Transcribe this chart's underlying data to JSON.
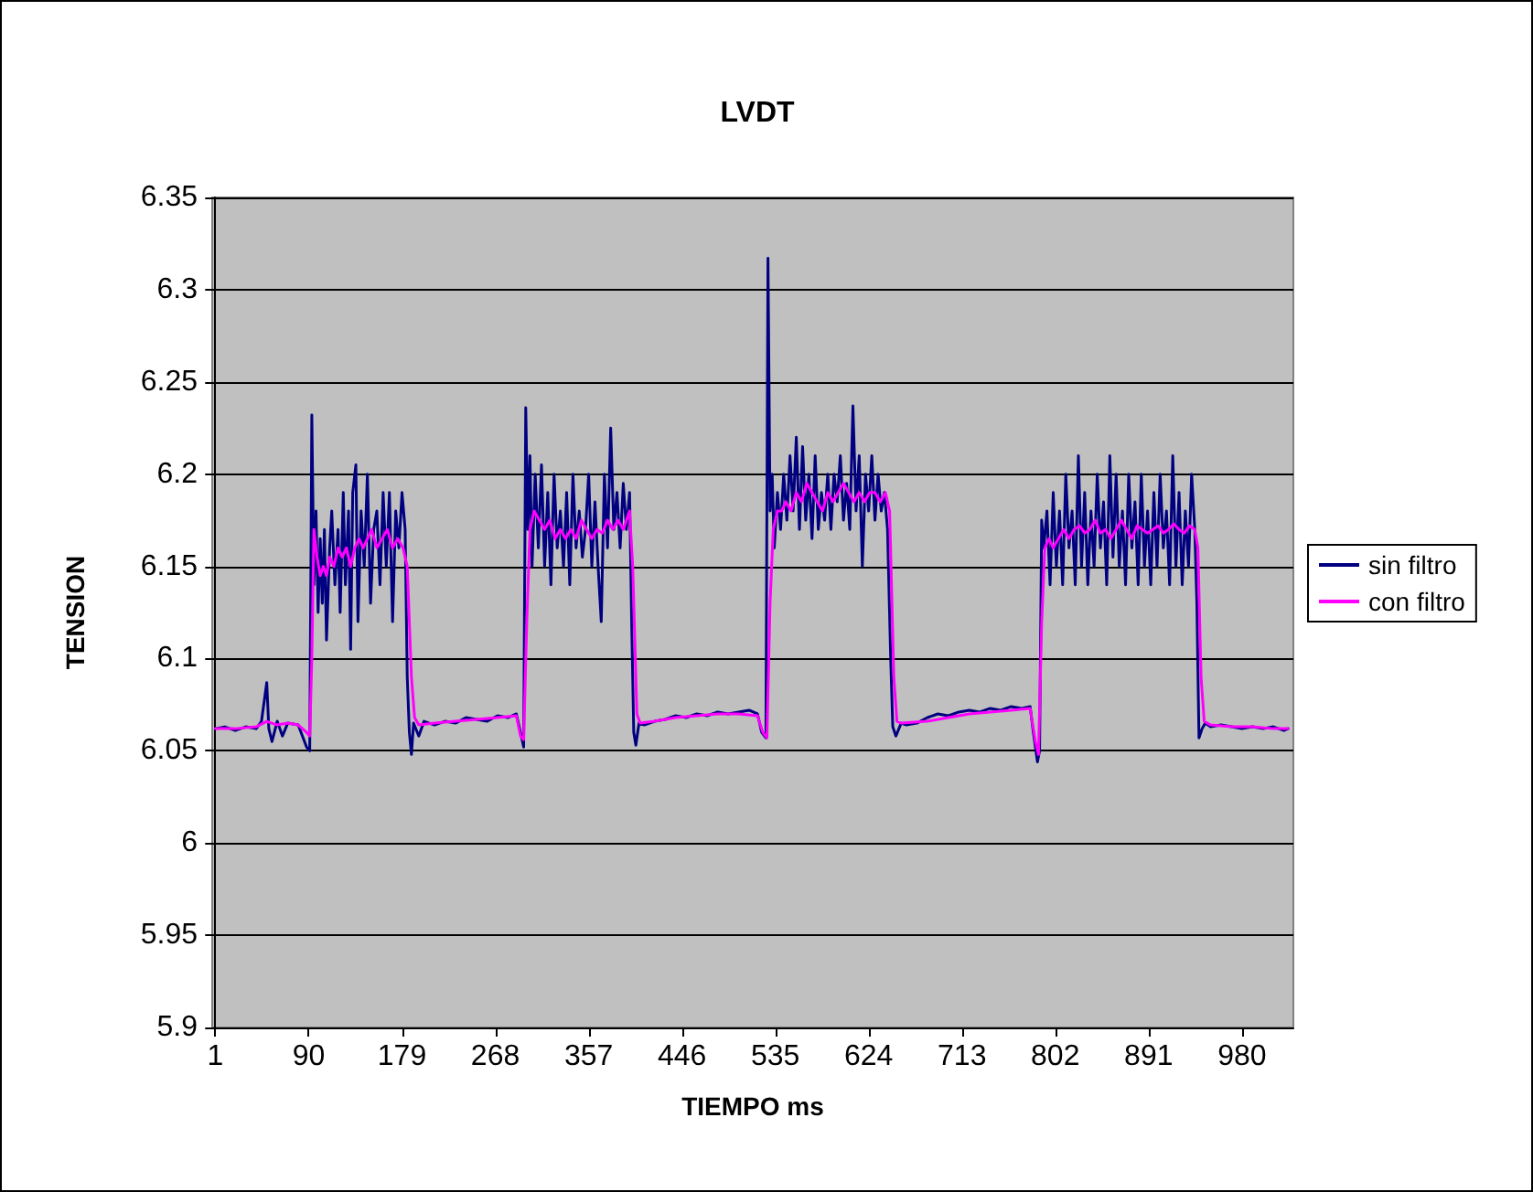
{
  "chart_data": {
    "type": "line",
    "title": "LVDT",
    "xlabel": "TIEMPO ms",
    "ylabel": "TENSION",
    "xlim": [
      -2,
      1029
    ],
    "xticks": [
      1,
      90,
      179,
      268,
      357,
      446,
      535,
      624,
      713,
      802,
      891,
      980
    ],
    "ylim": [
      5.9,
      6.35
    ],
    "yticks": [
      5.9,
      5.95,
      6,
      6.05,
      6.1,
      6.15,
      6.2,
      6.25,
      6.3,
      6.35
    ],
    "grid": "y",
    "legend": "right",
    "marker": "none",
    "line_style": "solid",
    "series": [
      {
        "name": "sin filtro",
        "color": "#000080",
        "x": [
          1,
          10,
          20,
          30,
          40,
          45,
          50,
          52,
          55,
          60,
          65,
          70,
          80,
          88,
          91,
          93,
          95,
          97,
          99,
          101,
          103,
          105,
          107,
          110,
          112,
          115,
          118,
          120,
          123,
          125,
          128,
          130,
          132,
          135,
          137,
          140,
          143,
          146,
          149,
          152,
          155,
          158,
          161,
          164,
          167,
          170,
          173,
          176,
          179,
          182,
          184,
          186,
          188,
          190,
          195,
          200,
          210,
          220,
          230,
          240,
          250,
          260,
          270,
          280,
          288,
          292,
          295,
          297,
          299,
          301,
          303,
          306,
          309,
          312,
          315,
          318,
          321,
          324,
          327,
          330,
          333,
          336,
          339,
          342,
          345,
          348,
          351,
          354,
          357,
          360,
          363,
          366,
          369,
          372,
          375,
          378,
          381,
          384,
          387,
          390,
          393,
          396,
          398,
          400,
          402,
          405,
          410,
          420,
          430,
          440,
          450,
          460,
          470,
          480,
          490,
          500,
          510,
          518,
          522,
          526,
          528,
          530,
          532,
          534,
          537,
          540,
          543,
          546,
          549,
          552,
          555,
          558,
          561,
          564,
          567,
          570,
          573,
          576,
          579,
          582,
          585,
          588,
          591,
          594,
          597,
          600,
          603,
          606,
          609,
          612,
          615,
          618,
          621,
          624,
          627,
          630,
          633,
          636,
          639,
          642,
          645,
          647,
          650,
          655,
          660,
          670,
          680,
          690,
          700,
          710,
          720,
          730,
          740,
          750,
          760,
          770,
          778,
          781,
          785,
          787,
          789,
          791,
          794,
          797,
          800,
          803,
          806,
          809,
          812,
          815,
          818,
          821,
          824,
          827,
          830,
          833,
          836,
          839,
          842,
          845,
          848,
          851,
          854,
          857,
          860,
          863,
          866,
          869,
          872,
          875,
          878,
          881,
          884,
          887,
          890,
          893,
          896,
          899,
          902,
          905,
          908,
          911,
          914,
          917,
          920,
          923,
          926,
          929,
          932,
          935,
          937,
          939,
          942,
          945,
          950,
          960,
          970,
          980,
          990,
          1000,
          1010,
          1020,
          1024
        ],
        "values": [
          6.062,
          6.063,
          6.061,
          6.063,
          6.062,
          6.066,
          6.087,
          6.062,
          6.055,
          6.066,
          6.058,
          6.065,
          6.064,
          6.052,
          6.05,
          6.232,
          6.14,
          6.18,
          6.125,
          6.165,
          6.13,
          6.17,
          6.11,
          6.16,
          6.18,
          6.14,
          6.17,
          6.125,
          6.19,
          6.14,
          6.18,
          6.105,
          6.19,
          6.205,
          6.12,
          6.18,
          6.15,
          6.2,
          6.13,
          6.17,
          6.18,
          6.14,
          6.19,
          6.15,
          6.19,
          6.12,
          6.18,
          6.16,
          6.19,
          6.17,
          6.09,
          6.06,
          6.048,
          6.065,
          6.058,
          6.066,
          6.064,
          6.066,
          6.065,
          6.068,
          6.067,
          6.066,
          6.069,
          6.068,
          6.07,
          6.06,
          6.052,
          6.236,
          6.17,
          6.21,
          6.15,
          6.2,
          6.16,
          6.205,
          6.15,
          6.19,
          6.14,
          6.2,
          6.16,
          6.18,
          6.15,
          6.19,
          6.14,
          6.2,
          6.16,
          6.18,
          6.155,
          6.17,
          6.2,
          6.15,
          6.185,
          6.15,
          6.12,
          6.2,
          6.16,
          6.225,
          6.17,
          6.19,
          6.16,
          6.195,
          6.17,
          6.19,
          6.12,
          6.06,
          6.053,
          6.065,
          6.064,
          6.066,
          6.067,
          6.069,
          6.068,
          6.07,
          6.069,
          6.071,
          6.07,
          6.071,
          6.072,
          6.07,
          6.06,
          6.057,
          6.317,
          6.18,
          6.2,
          6.16,
          6.19,
          6.17,
          6.2,
          6.175,
          6.21,
          6.18,
          6.22,
          6.17,
          6.215,
          6.175,
          6.2,
          6.165,
          6.21,
          6.17,
          6.19,
          6.175,
          6.2,
          6.17,
          6.2,
          6.185,
          6.21,
          6.175,
          6.195,
          6.17,
          6.237,
          6.18,
          6.21,
          6.15,
          6.2,
          6.18,
          6.21,
          6.175,
          6.2,
          6.18,
          6.19,
          6.17,
          6.1,
          6.063,
          6.058,
          6.065,
          6.064,
          6.065,
          6.068,
          6.07,
          6.069,
          6.071,
          6.072,
          6.071,
          6.073,
          6.072,
          6.074,
          6.073,
          6.074,
          6.06,
          6.044,
          6.05,
          6.175,
          6.16,
          6.18,
          6.14,
          6.19,
          6.15,
          6.18,
          6.14,
          6.2,
          6.16,
          6.18,
          6.14,
          6.21,
          6.15,
          6.19,
          6.14,
          6.18,
          6.15,
          6.2,
          6.16,
          6.185,
          6.14,
          6.21,
          6.155,
          6.2,
          6.15,
          6.18,
          6.14,
          6.2,
          6.16,
          6.185,
          6.14,
          6.2,
          6.15,
          6.18,
          6.14,
          6.19,
          6.15,
          6.2,
          6.16,
          6.18,
          6.14,
          6.21,
          6.15,
          6.19,
          6.14,
          6.18,
          6.15,
          6.2,
          6.17,
          6.13,
          6.057,
          6.062,
          6.065,
          6.063,
          6.064,
          6.063,
          6.062,
          6.063,
          6.062,
          6.063,
          6.061,
          6.062
        ]
      },
      {
        "name": "con filtro",
        "color": "#ff00ff",
        "x": [
          1,
          20,
          40,
          50,
          60,
          70,
          80,
          88,
          91,
          93,
          95,
          98,
          101,
          104,
          107,
          110,
          114,
          118,
          122,
          126,
          130,
          134,
          138,
          142,
          146,
          150,
          155,
          160,
          165,
          170,
          175,
          180,
          184,
          188,
          191,
          195,
          210,
          230,
          250,
          270,
          288,
          292,
          295,
          298,
          301,
          305,
          310,
          315,
          320,
          325,
          330,
          335,
          340,
          345,
          350,
          355,
          360,
          365,
          370,
          375,
          380,
          385,
          390,
          396,
          399,
          403,
          406,
          420,
          440,
          460,
          480,
          500,
          518,
          523,
          527,
          530,
          533,
          537,
          541,
          545,
          550,
          555,
          560,
          565,
          570,
          575,
          580,
          585,
          590,
          595,
          600,
          605,
          610,
          615,
          620,
          625,
          630,
          635,
          640,
          644,
          648,
          651,
          655,
          680,
          700,
          720,
          740,
          760,
          778,
          783,
          786,
          789,
          792,
          796,
          800,
          805,
          810,
          815,
          820,
          825,
          830,
          835,
          840,
          845,
          850,
          855,
          860,
          865,
          870,
          875,
          880,
          885,
          890,
          895,
          900,
          905,
          910,
          915,
          920,
          925,
          930,
          935,
          938,
          941,
          944,
          950,
          970,
          990,
          1010,
          1024
        ],
        "values": [
          6.062,
          6.062,
          6.063,
          6.066,
          6.064,
          6.065,
          6.064,
          6.06,
          6.058,
          6.1,
          6.17,
          6.155,
          6.145,
          6.15,
          6.145,
          6.155,
          6.15,
          6.16,
          6.155,
          6.16,
          6.15,
          6.16,
          6.165,
          6.16,
          6.165,
          6.17,
          6.16,
          6.165,
          6.17,
          6.16,
          6.165,
          6.16,
          6.15,
          6.09,
          6.068,
          6.064,
          6.065,
          6.066,
          6.067,
          6.068,
          6.069,
          6.058,
          6.056,
          6.12,
          6.17,
          6.18,
          6.175,
          6.17,
          6.175,
          6.165,
          6.17,
          6.165,
          6.17,
          6.165,
          6.175,
          6.17,
          6.165,
          6.17,
          6.168,
          6.175,
          6.17,
          6.175,
          6.17,
          6.18,
          6.15,
          6.07,
          6.065,
          6.066,
          6.068,
          6.069,
          6.07,
          6.07,
          6.069,
          6.06,
          6.057,
          6.13,
          6.17,
          6.18,
          6.18,
          6.185,
          6.18,
          6.19,
          6.185,
          6.195,
          6.19,
          6.185,
          6.18,
          6.19,
          6.185,
          6.19,
          6.195,
          6.19,
          6.185,
          6.19,
          6.185,
          6.19,
          6.19,
          6.185,
          6.19,
          6.18,
          6.09,
          6.066,
          6.065,
          6.066,
          6.068,
          6.07,
          6.071,
          6.072,
          6.073,
          6.055,
          6.048,
          6.12,
          6.16,
          6.165,
          6.16,
          6.165,
          6.17,
          6.165,
          6.17,
          6.172,
          6.168,
          6.17,
          6.175,
          6.168,
          6.17,
          6.165,
          6.17,
          6.175,
          6.17,
          6.165,
          6.172,
          6.17,
          6.168,
          6.17,
          6.172,
          6.168,
          6.17,
          6.173,
          6.17,
          6.168,
          6.172,
          6.17,
          6.16,
          6.09,
          6.066,
          6.064,
          6.063,
          6.063,
          6.062,
          6.062
        ]
      }
    ]
  }
}
